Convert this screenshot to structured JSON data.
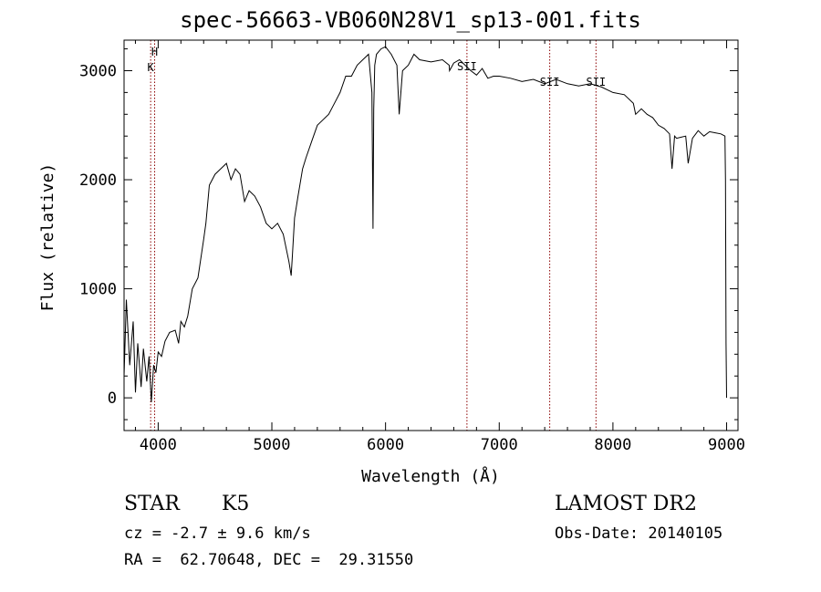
{
  "chart_data": {
    "type": "line",
    "title": "spec-56663-VB060N28V1_sp13-001.fits",
    "xlabel": "Wavelength (Å)",
    "ylabel": "Flux (relative)",
    "xlim": [
      3700,
      9100
    ],
    "ylim": [
      -300,
      3280
    ],
    "x_ticks": [
      4000,
      5000,
      6000,
      7000,
      8000,
      9000
    ],
    "y_ticks": [
      0,
      1000,
      2000,
      3000
    ],
    "grid": false,
    "series": [
      {
        "x": [
          3700,
          3720,
          3750,
          3780,
          3800,
          3820,
          3850,
          3870,
          3900,
          3920,
          3940,
          3960,
          3980,
          4000,
          4030,
          4060,
          4100,
          4150,
          4180,
          4200,
          4230,
          4260,
          4300,
          4350,
          4400,
          4420,
          4450,
          4500,
          4550,
          4600,
          4640,
          4680,
          4720,
          4760,
          4800,
          4850,
          4900,
          4950,
          5000,
          5050,
          5100,
          5150,
          5170,
          5180,
          5200,
          5230,
          5270,
          5300,
          5350,
          5400,
          5450,
          5500,
          5550,
          5600,
          5650,
          5700,
          5750,
          5800,
          5850,
          5880,
          5890,
          5896,
          5905,
          5920,
          5960,
          6000,
          6050,
          6100,
          6120,
          6150,
          6200,
          6250,
          6300,
          6400,
          6500,
          6560,
          6563,
          6600,
          6650,
          6700,
          6750,
          6800,
          6850,
          6900,
          6950,
          7000,
          7100,
          7200,
          7300,
          7400,
          7500,
          7600,
          7700,
          7800,
          7900,
          8000,
          8100,
          8180,
          8200,
          8250,
          8300,
          8350,
          8400,
          8450,
          8498,
          8520,
          8542,
          8560,
          8600,
          8640,
          8662,
          8700,
          8750,
          8800,
          8850,
          8900,
          8950,
          8985,
          8990,
          8995,
          9000
        ],
        "y": [
          200,
          900,
          300,
          700,
          50,
          500,
          100,
          450,
          150,
          380,
          -40,
          300,
          230,
          420,
          380,
          520,
          600,
          620,
          500,
          700,
          650,
          750,
          1000,
          1100,
          1450,
          1600,
          1950,
          2050,
          2100,
          2150,
          2000,
          2100,
          2050,
          1800,
          1900,
          1850,
          1750,
          1600,
          1550,
          1600,
          1500,
          1250,
          1120,
          1300,
          1650,
          1850,
          2100,
          2200,
          2350,
          2500,
          2550,
          2600,
          2700,
          2800,
          2950,
          2950,
          3050,
          3100,
          3150,
          2800,
          1550,
          2650,
          3050,
          3150,
          3200,
          3220,
          3150,
          3050,
          2600,
          3000,
          3050,
          3150,
          3100,
          3080,
          3100,
          3050,
          3000,
          3070,
          3100,
          3050,
          3000,
          2960,
          3020,
          2930,
          2950,
          2950,
          2930,
          2900,
          2920,
          2880,
          2920,
          2880,
          2860,
          2880,
          2850,
          2800,
          2780,
          2700,
          2600,
          2650,
          2600,
          2570,
          2500,
          2470,
          2420,
          2100,
          2400,
          2380,
          2390,
          2400,
          2150,
          2380,
          2450,
          2400,
          2440,
          2430,
          2420,
          2400,
          2000,
          500,
          0
        ],
        "color": "#000000"
      }
    ],
    "lines": [
      {
        "x": 3934,
        "label": "K",
        "color": "#8b0000"
      },
      {
        "x": 3969,
        "label": "H",
        "color": "#8b0000"
      },
      {
        "x": 6716,
        "label": "SII",
        "color": "#8b0000"
      },
      {
        "x": 7444,
        "label": "SII",
        "color": "#8b0000"
      },
      {
        "x": 7851,
        "label": "SII",
        "color": "#8b0000"
      }
    ]
  },
  "info": {
    "class": "STAR",
    "subclass": "K5",
    "cz": "cz = -2.7 ± 9.6 km/s",
    "radec": "RA =  62.70648, DEC =  29.31550",
    "survey": "LAMOST DR2",
    "obsdate": "Obs-Date: 20140105"
  }
}
